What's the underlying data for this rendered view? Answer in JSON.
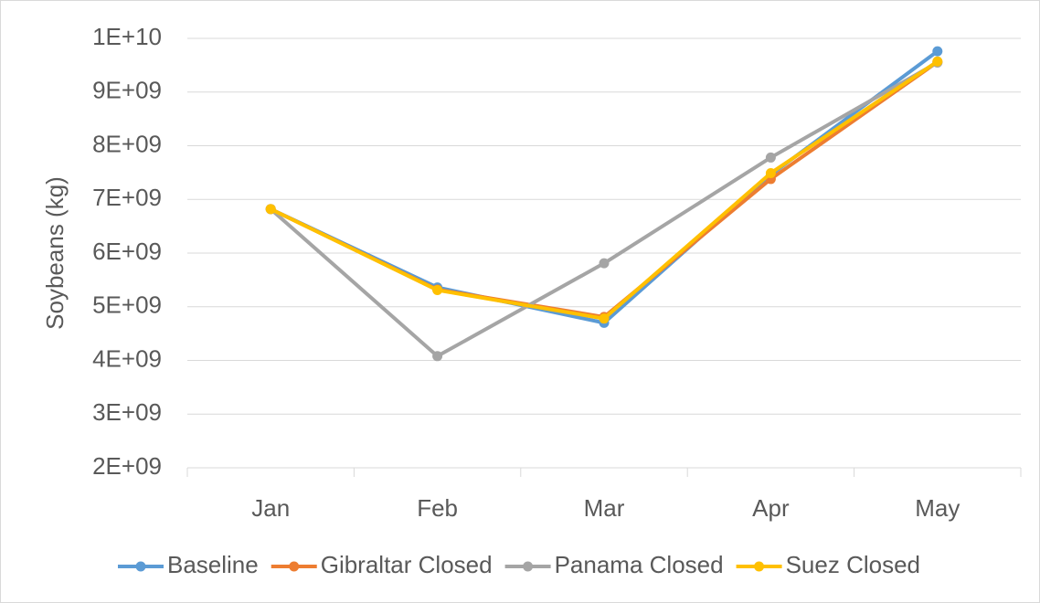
{
  "chart_data": {
    "type": "line",
    "y_label": "Soybeans (kg)",
    "categories": [
      "Jan",
      "Feb",
      "Mar",
      "Apr",
      "May"
    ],
    "series": [
      {
        "name": "Baseline",
        "color": "#5b9bd5",
        "values": [
          6820000000,
          5360000000,
          4700000000,
          7460000000,
          9760000000
        ]
      },
      {
        "name": "Gibraltar Closed",
        "color": "#ed7d31",
        "values": [
          6820000000,
          5320000000,
          4810000000,
          7380000000,
          9560000000
        ]
      },
      {
        "name": "Panama Closed",
        "color": "#a5a5a5",
        "values": [
          6820000000,
          4080000000,
          5810000000,
          7780000000,
          9550000000
        ]
      },
      {
        "name": "Suez Closed",
        "color": "#ffc000",
        "values": [
          6820000000,
          5310000000,
          4780000000,
          7490000000,
          9570000000
        ]
      }
    ],
    "ylim": [
      2000000000,
      10000000000
    ],
    "yticks": [
      {
        "value": 2000000000,
        "label": "2E+09"
      },
      {
        "value": 3000000000,
        "label": "3E+09"
      },
      {
        "value": 4000000000,
        "label": "4E+09"
      },
      {
        "value": 5000000000,
        "label": "5E+09"
      },
      {
        "value": 6000000000,
        "label": "6E+09"
      },
      {
        "value": 7000000000,
        "label": "7E+09"
      },
      {
        "value": 8000000000,
        "label": "8E+09"
      },
      {
        "value": 9000000000,
        "label": "9E+09"
      },
      {
        "value": 10000000000,
        "label": "1E+10"
      }
    ],
    "grid": true,
    "legend": "bottom"
  }
}
